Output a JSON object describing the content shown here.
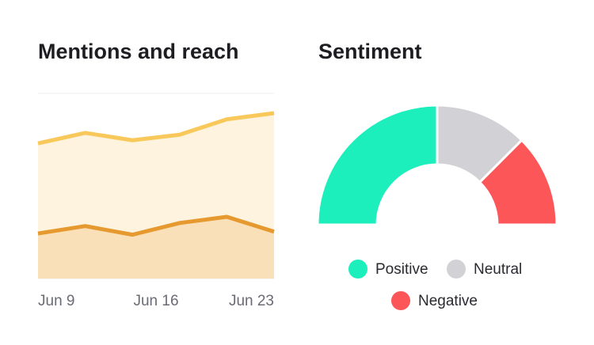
{
  "chart_data": [
    {
      "type": "area",
      "title": "Mentions and reach",
      "x": [
        0,
        2.8,
        5.6,
        8.4,
        11.2,
        14
      ],
      "xlim": [
        0,
        14
      ],
      "xticks": [
        {
          "value": 0,
          "label": "Jun 9"
        },
        {
          "value": 7,
          "label": "Jun 16"
        },
        {
          "value": 14,
          "label": "Jun 23"
        }
      ],
      "ylim": [
        0,
        3
      ],
      "yticks": [
        0,
        1,
        2,
        3
      ],
      "grid": true,
      "series": [
        {
          "color": "#f9c85a",
          "fill": "#fdf3de",
          "values": [
            2.19,
            2.36,
            2.24,
            2.33,
            2.58,
            2.68
          ]
        },
        {
          "color": "#e6992e",
          "fill": "#fae0b8",
          "values": [
            0.73,
            0.85,
            0.71,
            0.9,
            1.0,
            0.76
          ]
        }
      ]
    },
    {
      "type": "half-donut",
      "title": "Sentiment",
      "categories": [
        "Positive",
        "Neutral",
        "Negative"
      ],
      "values": [
        50,
        25,
        25
      ],
      "colors": [
        "#1ceebc",
        "#d2d2d6",
        "#fd5659"
      ],
      "legend": "bottom"
    }
  ]
}
